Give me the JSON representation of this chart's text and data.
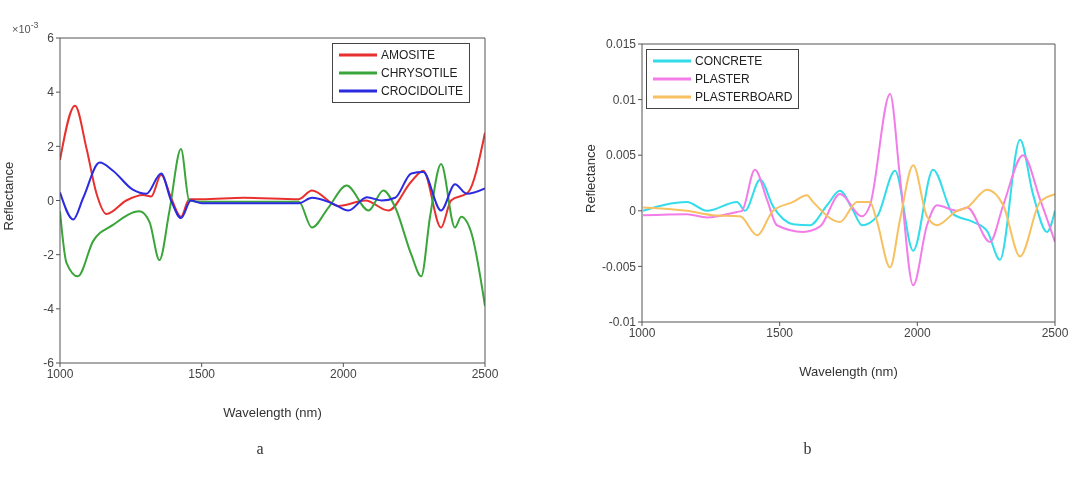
{
  "chart_data": [
    {
      "type": "line",
      "xlabel": "Wavelength (nm)",
      "ylabel": "Reflectance",
      "xlim": [
        1000,
        2500
      ],
      "xticks": [
        1000,
        1500,
        2000,
        2500
      ],
      "ylim": [
        -6,
        6
      ],
      "yticks": [
        -6,
        -4,
        -2,
        0,
        2,
        4,
        6
      ],
      "legend": "top right",
      "annotations": [
        "×10$^{-3}$",
        "a"
      ],
      "series": [
        {
          "name": "AMOSITE",
          "color": "#e8312f",
          "x": [
            1000,
            1053,
            1094,
            1129,
            1164,
            1234,
            1293,
            1322,
            1357,
            1392,
            1427,
            1456,
            1500,
            1650,
            1843,
            1889,
            1983,
            2078,
            2159,
            2240,
            2282,
            2345,
            2380,
            2440,
            2500
          ],
          "values": [
            1.5,
            3.5,
            1.9,
            0.25,
            -0.5,
            0,
            0.2,
            0.15,
            0.95,
            0.1,
            -0.6,
            0.05,
            0.05,
            0.1,
            0.05,
            0.37,
            -0.2,
            0,
            -0.37,
            0.7,
            1.1,
            -1,
            0,
            0.3,
            2.5
          ]
        },
        {
          "name": "CHRYSOTILE",
          "color": "#3aa53a",
          "x": [
            1000,
            1023,
            1063,
            1117,
            1187,
            1281,
            1316,
            1351,
            1386,
            1427,
            1456,
            1500,
            1650,
            1843,
            1889,
            1948,
            2012,
            2089,
            2141,
            2183,
            2240,
            2275,
            2306,
            2345,
            2394,
            2416,
            2452,
            2500
          ],
          "values": [
            -0.4,
            -2.3,
            -2.8,
            -1.5,
            -0.9,
            -0.4,
            -0.8,
            -2.2,
            -0.4,
            1.9,
            0,
            -0.05,
            -0.05,
            -0.05,
            -1,
            -0.25,
            0.55,
            -0.37,
            0.37,
            -0.25,
            -2,
            -2.8,
            -0.6,
            1.35,
            -1,
            -0.6,
            -1.2,
            -3.9
          ]
        },
        {
          "name": "CROCIDOLITE",
          "color": "#2a2ae0",
          "x": [
            1000,
            1047,
            1082,
            1140,
            1187,
            1257,
            1305,
            1357,
            1392,
            1427,
            1462,
            1500,
            1650,
            1843,
            1889,
            1959,
            2018,
            2083,
            2136,
            2183,
            2240,
            2282,
            2345,
            2394,
            2435,
            2500
          ],
          "values": [
            0.3,
            -0.7,
            0.1,
            1.4,
            1.1,
            0.4,
            0.25,
            1,
            0,
            -0.65,
            0,
            -0.1,
            -0.1,
            -0.1,
            0.1,
            -0.1,
            -0.37,
            0.12,
            0,
            0.1,
            1,
            1.05,
            -0.37,
            0.6,
            0.25,
            0.45
          ]
        }
      ]
    },
    {
      "type": "line",
      "xlabel": "Wavelength (nm)",
      "ylabel": "Reflectance",
      "xlim": [
        1000,
        2500
      ],
      "xticks": [
        1000,
        1500,
        2000,
        2500
      ],
      "ylim": [
        -0.01,
        0.015
      ],
      "yticks": [
        -0.01,
        -0.005,
        0,
        0.005,
        0.01,
        0.015
      ],
      "legend": "top left",
      "annotations": [
        "b"
      ],
      "series": [
        {
          "name": "CONCRETE",
          "color": "#33dcea",
          "x": [
            1004,
            1163,
            1236,
            1345,
            1374,
            1429,
            1476,
            1549,
            1610,
            1672,
            1719,
            1767,
            1799,
            1854,
            1919,
            1985,
            2057,
            2130,
            2202,
            2253,
            2300,
            2373,
            2420,
            2471,
            2500
          ],
          "values": [
            0,
            0.0008,
            0,
            0.0008,
            0,
            0.0028,
            0.0004,
            -0.0012,
            -0.0013,
            0.0005,
            0.0018,
            0,
            -0.0013,
            -0.0005,
            0.0036,
            -0.0036,
            0.0037,
            -0.0003,
            -0.001,
            -0.0018,
            -0.0044,
            0.0064,
            0.0015,
            -0.0019,
            0
          ]
        },
        {
          "name": "PLASTER",
          "color": "#f27de8",
          "x": [
            1004,
            1163,
            1236,
            1345,
            1363,
            1410,
            1454,
            1490,
            1585,
            1647,
            1719,
            1799,
            1828,
            1901,
            1937,
            1985,
            2035,
            2071,
            2144,
            2181,
            2264,
            2312,
            2384,
            2446,
            2500
          ],
          "values": [
            -0.0004,
            -0.0003,
            -0.0006,
            -0.0001,
            0,
            0.0037,
            0.001,
            -0.0013,
            -0.0019,
            -0.0014,
            0.0015,
            -0.0005,
            0.0005,
            0.0105,
            0.003,
            -0.0067,
            -0.0013,
            0.0005,
            0,
            0.0003,
            -0.0028,
            0.0005,
            0.005,
            0.001,
            -0.0028
          ]
        },
        {
          "name": "PLASTERBOARD",
          "color": "#f7c060",
          "x": [
            1004,
            1163,
            1258,
            1356,
            1418,
            1476,
            1549,
            1599,
            1621,
            1719,
            1781,
            1828,
            1854,
            1901,
            1937,
            1985,
            2035,
            2071,
            2144,
            2181,
            2253,
            2312,
            2373,
            2446,
            2500
          ],
          "values": [
            0.0003,
            0,
            -0.0004,
            -0.0005,
            -0.0022,
            0,
            0.0008,
            0.0014,
            0.0008,
            -0.001,
            0.0008,
            0.0008,
            -0.001,
            -0.0051,
            -0.0008,
            0.0041,
            -0.0005,
            -0.0013,
            0,
            0.0003,
            0.0019,
            0.0005,
            -0.0041,
            0.0008,
            0.0015
          ]
        }
      ]
    }
  ]
}
